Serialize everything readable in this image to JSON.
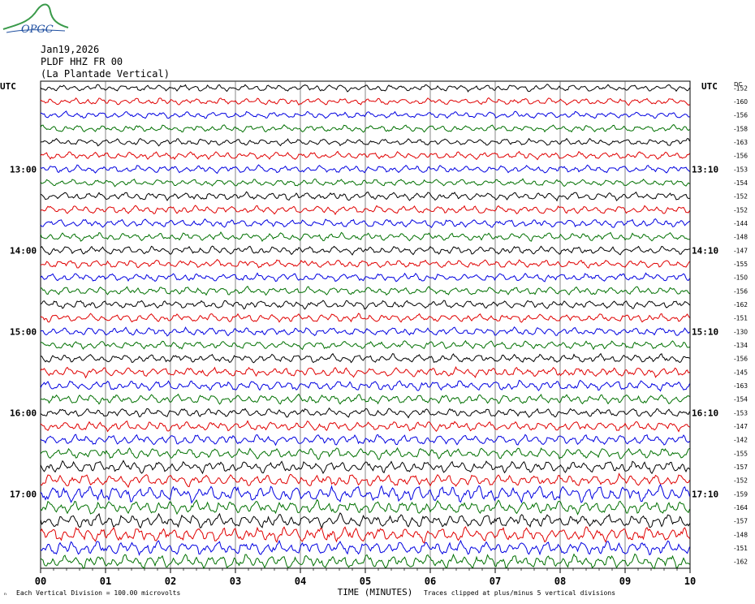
{
  "logo": {
    "text": "OPGC",
    "colors": {
      "swoosh": "#3a9a4a",
      "text": "#1f4fa0"
    }
  },
  "header": {
    "date": "Jan19,2026",
    "station": "PLDF HHZ FR 00",
    "location": "(La Plantade Vertical)"
  },
  "footer": {
    "scale_note": "Each Vertical Division = 100.00 microvolts",
    "clip_note": "Traces clipped at plus/minus 5 vertical divisions",
    "xlabel": "TIME (MINUTES)"
  },
  "chart_data": {
    "type": "line",
    "title": "",
    "xlabel": "TIME (MINUTES)",
    "ylabel": "",
    "xlim": [
      0,
      10
    ],
    "x_ticks": [
      "00",
      "01",
      "02",
      "03",
      "04",
      "05",
      "06",
      "07",
      "08",
      "09",
      "10"
    ],
    "left_axis_label": "UTC",
    "right_axis_label": "UTC",
    "dc_label": "DC",
    "left_hour_labels": [
      "13:00",
      "14:00",
      "15:00",
      "16:00",
      "17:00"
    ],
    "right_hour_labels": [
      "13:10",
      "14:10",
      "15:10",
      "16:10",
      "17:10"
    ],
    "hour_label_rows": [
      6,
      12,
      18,
      24,
      30
    ],
    "trace_colors": [
      "#000000",
      "#e00000",
      "#0000e0",
      "#007000"
    ],
    "dc_offsets": [
      -152,
      -160,
      -156,
      -158,
      -163,
      -156,
      -153,
      -154,
      -152,
      -152,
      -144,
      -148,
      -147,
      -155,
      -150,
      -156,
      -162,
      -151,
      -130,
      -134,
      -156,
      -145,
      -163,
      -154,
      -153,
      -147,
      -142,
      -155,
      -157,
      -152,
      -159,
      -164,
      -157,
      -148,
      -151,
      -162
    ],
    "trace_amplitudes": [
      0.5,
      0.5,
      0.5,
      0.5,
      0.5,
      0.55,
      0.55,
      0.5,
      0.6,
      0.6,
      0.6,
      0.6,
      0.6,
      0.6,
      0.6,
      0.6,
      0.6,
      0.6,
      0.6,
      0.6,
      0.65,
      0.7,
      0.75,
      0.7,
      0.65,
      0.7,
      0.75,
      0.8,
      0.85,
      0.9,
      1.2,
      1.0,
      1.0,
      1.1,
      1.0,
      1.0
    ],
    "grid": true
  }
}
